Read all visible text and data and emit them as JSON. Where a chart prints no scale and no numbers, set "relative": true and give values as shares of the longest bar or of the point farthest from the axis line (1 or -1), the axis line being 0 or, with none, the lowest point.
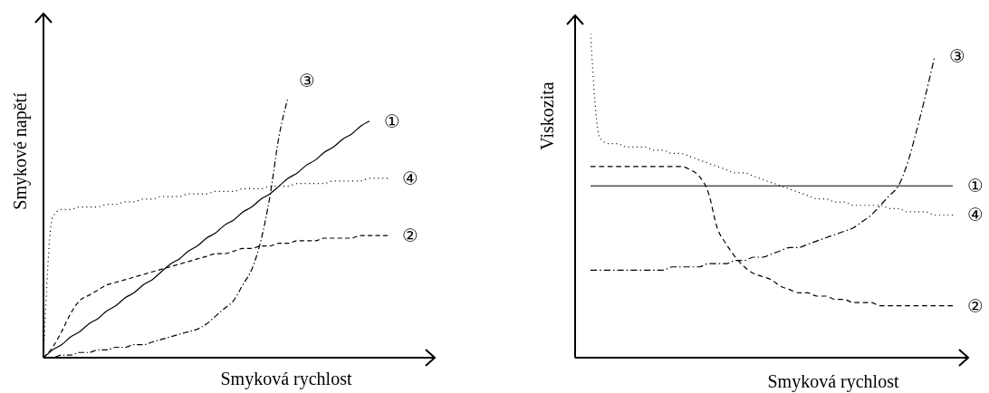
{
  "chart_data": [
    {
      "type": "line",
      "relative": true,
      "marker": "none",
      "xlabel": "Smyková rychlost",
      "ylabel": "Smykové napětí",
      "categories": [
        null,
        null,
        null,
        null,
        null,
        null,
        null,
        null,
        null,
        null,
        null,
        null,
        null,
        null,
        null,
        null,
        null,
        null,
        null,
        null,
        null,
        null,
        null,
        null,
        null,
        null,
        null,
        null,
        null,
        null,
        null,
        null,
        null,
        null,
        null,
        null,
        null,
        null,
        null
      ],
      "series": [
        {
          "name": "①",
          "color": "#000000",
          "line_style": "solid",
          "values": [
            0,
            0.03,
            0.05,
            0.08,
            0.1,
            0.13,
            0.15,
            0.18,
            0.2,
            0.23,
            0.25,
            0.28,
            0.3,
            0.33,
            0.36,
            0.38,
            0.41,
            0.43,
            0.46,
            0.48,
            0.51,
            0.53,
            0.56,
            0.58,
            0.61,
            0.63,
            0.66,
            0.69,
            0.71,
            0.74,
            0.76,
            0.79,
            0.81,
            0.84,
            0.86,
            0.89,
            0.91,
            null,
            null
          ]
        },
        {
          "name": "②",
          "color": "#000000",
          "line_style": "dashed",
          "values": [
            0,
            0.04,
            0.1,
            0.17,
            0.22,
            0.24,
            0.26,
            0.28,
            0.29,
            0.3,
            0.31,
            0.32,
            0.33,
            0.34,
            0.35,
            0.36,
            0.37,
            0.38,
            0.39,
            0.4,
            0.4,
            0.41,
            0.42,
            0.42,
            0.43,
            0.43,
            0.44,
            0.44,
            0.45,
            0.45,
            0.45,
            0.46,
            0.46,
            0.46,
            0.46,
            0.47,
            0.47,
            0.47,
            0.47
          ]
        },
        {
          "name": "③",
          "color": "#000000",
          "line_style": "dashdot",
          "values": [
            0,
            0,
            0.01,
            0.01,
            0.02,
            0.02,
            0.03,
            0.03,
            0.04,
            0.04,
            0.05,
            0.05,
            0.06,
            0.07,
            0.08,
            0.09,
            0.1,
            0.11,
            0.13,
            0.16,
            0.19,
            0.22,
            0.28,
            0.34,
            0.45,
            0.62,
            0.85,
            1.0,
            null,
            null,
            null,
            null,
            null,
            null,
            null,
            null,
            null,
            null,
            null
          ]
        },
        {
          "name": "④",
          "color": "#000000",
          "line_style": "dotted",
          "values": [
            0,
            0.54,
            0.57,
            0.57,
            0.58,
            0.58,
            0.58,
            0.59,
            0.59,
            0.6,
            0.6,
            0.61,
            0.61,
            0.62,
            0.62,
            0.62,
            0.63,
            0.63,
            0.63,
            0.64,
            0.64,
            0.64,
            0.65,
            0.65,
            0.65,
            0.66,
            0.66,
            0.66,
            0.67,
            0.67,
            0.67,
            0.67,
            0.68,
            0.68,
            0.68,
            0.68,
            0.69,
            0.69,
            0.69
          ]
        }
      ]
    },
    {
      "type": "line",
      "relative": true,
      "marker": "none",
      "xlabel": "Smyková rychlost",
      "ylabel": "Viskozita",
      "categories": [
        null,
        null,
        null,
        null,
        null,
        null,
        null,
        null,
        null,
        null,
        null,
        null,
        null,
        null,
        null,
        null,
        null,
        null,
        null,
        null,
        null,
        null,
        null,
        null,
        null,
        null,
        null,
        null,
        null,
        null,
        null,
        null,
        null,
        null,
        null,
        null,
        null,
        null,
        null,
        null,
        null
      ],
      "series": [
        {
          "name": "①",
          "color": "#000000",
          "line_style": "solid",
          "values": [
            0.53,
            0.53,
            0.53,
            0.53,
            0.53,
            0.53,
            0.53,
            0.53,
            0.53,
            0.53,
            0.53,
            0.53,
            0.53,
            0.53,
            0.53,
            0.53,
            0.53,
            0.53,
            0.53,
            0.53,
            0.53,
            0.53,
            0.53,
            0.53,
            0.53,
            0.53,
            0.53,
            0.53,
            0.53,
            0.53,
            0.53,
            0.53,
            0.53,
            0.53,
            0.53,
            0.53,
            0.53,
            0.53,
            0.53,
            0.53,
            0.53
          ]
        },
        {
          "name": "②",
          "color": "#000000",
          "line_style": "dashed",
          "values": [
            0.59,
            0.59,
            0.59,
            0.59,
            0.59,
            0.59,
            0.59,
            0.59,
            0.59,
            0.59,
            0.59,
            0.58,
            0.56,
            0.51,
            0.4,
            0.35,
            0.31,
            0.28,
            0.26,
            0.25,
            0.24,
            0.22,
            0.21,
            0.2,
            0.2,
            0.19,
            0.19,
            0.18,
            0.18,
            0.17,
            0.17,
            0.17,
            0.16,
            0.16,
            0.16,
            0.16,
            0.16,
            0.16,
            0.16,
            0.16,
            0.16
          ]
        },
        {
          "name": "③",
          "color": "#000000",
          "line_style": "dashdot",
          "values": [
            0.27,
            0.27,
            0.27,
            0.27,
            0.27,
            0.27,
            0.27,
            0.27,
            0.27,
            0.28,
            0.28,
            0.28,
            0.28,
            0.29,
            0.29,
            0.29,
            0.3,
            0.3,
            0.31,
            0.31,
            0.32,
            0.33,
            0.34,
            0.34,
            0.35,
            0.36,
            0.37,
            0.38,
            0.39,
            0.4,
            0.42,
            0.44,
            0.47,
            0.5,
            0.53,
            0.6,
            0.7,
            0.81,
            0.93,
            null,
            null
          ]
        },
        {
          "name": "④",
          "color": "#000000",
          "line_style": "dotted",
          "values": [
            1.0,
            0.68,
            0.66,
            0.66,
            0.65,
            0.65,
            0.65,
            0.64,
            0.64,
            0.63,
            0.63,
            0.62,
            0.61,
            0.6,
            0.59,
            0.58,
            0.57,
            0.57,
            0.56,
            0.55,
            0.54,
            0.53,
            0.52,
            0.51,
            0.5,
            0.49,
            0.49,
            0.48,
            0.48,
            0.47,
            0.47,
            0.47,
            0.47,
            0.46,
            0.46,
            0.45,
            0.45,
            0.45,
            0.44,
            0.44,
            0.44
          ]
        }
      ]
    }
  ]
}
